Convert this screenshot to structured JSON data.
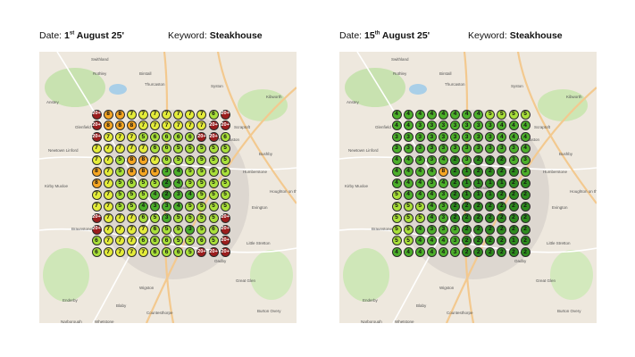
{
  "panels": [
    {
      "date_prefix": "Date: ",
      "date_day": "1",
      "date_suffix": "st",
      "date_rest": " August 25'",
      "keyword_prefix": "Keyword: ",
      "keyword": "Steakhouse",
      "grid": [
        [
          "20+",
          "8",
          "8",
          "7",
          "7",
          "7",
          "7",
          "7",
          "7",
          "7",
          "6",
          "20+"
        ],
        [
          "20+",
          "8",
          "8",
          "8",
          "7",
          "7",
          "7",
          "7",
          "7",
          "7",
          "20+",
          "20+"
        ],
        [
          "20+",
          "7",
          "7",
          "7",
          "5",
          "6",
          "6",
          "6",
          "6",
          "20+",
          "20+",
          "6"
        ],
        [
          "7",
          "7",
          "7",
          "7",
          "7",
          "6",
          "6",
          "5",
          "5",
          "5",
          "5",
          "5"
        ],
        [
          "7",
          "7",
          "5",
          "8",
          "8",
          "7",
          "6",
          "5",
          "5",
          "5",
          "5",
          "5"
        ],
        [
          "8",
          "7",
          "5",
          "8",
          "8",
          "8",
          "3",
          "4",
          "5",
          "5",
          "5",
          "5"
        ],
        [
          "8",
          "7",
          "5",
          "6",
          "5",
          "5",
          "2",
          "4",
          "5",
          "5",
          "5",
          "5"
        ],
        [
          "7",
          "7",
          "5",
          "5",
          "5",
          "4",
          "2",
          "3",
          "4",
          "5",
          "5",
          "5"
        ],
        [
          "7",
          "7",
          "5",
          "5",
          "4",
          "3",
          "3",
          "4",
          "5",
          "5",
          "5",
          "5"
        ],
        [
          "20+",
          "7",
          "7",
          "7",
          "6",
          "5",
          "3",
          "5",
          "5",
          "5",
          "5",
          "20+"
        ],
        [
          "20+",
          "7",
          "7",
          "7",
          "7",
          "6",
          "5",
          "5",
          "3",
          "5",
          "6",
          "20+"
        ],
        [
          "6",
          "7",
          "7",
          "7",
          "6",
          "6",
          "6",
          "5",
          "5",
          "6",
          "5",
          "20+"
        ],
        [
          "6",
          "7",
          "7",
          "7",
          "7",
          "6",
          "6",
          "6",
          "5",
          "20+",
          "20+",
          "20+"
        ]
      ]
    },
    {
      "date_prefix": "Date: ",
      "date_day": "15",
      "date_suffix": "th",
      "date_rest": " August 25'",
      "keyword_prefix": "Keyword: ",
      "keyword": "Steakhouse",
      "grid": [
        [
          "4",
          "4",
          "4",
          "4",
          "4",
          "4",
          "4",
          "4",
          "5",
          "5",
          "5",
          "5"
        ],
        [
          "4",
          "4",
          "3",
          "3",
          "3",
          "3",
          "3",
          "3",
          "3",
          "4",
          "4",
          "4"
        ],
        [
          "3",
          "3",
          "3",
          "3",
          "3",
          "3",
          "3",
          "3",
          "3",
          "4",
          "4",
          "4"
        ],
        [
          "3",
          "3",
          "3",
          "3",
          "3",
          "3",
          "3",
          "3",
          "3",
          "3",
          "3",
          "4"
        ],
        [
          "4",
          "4",
          "3",
          "3",
          "4",
          "2",
          "3",
          "2",
          "2",
          "2",
          "3",
          "3"
        ],
        [
          "4",
          "4",
          "4",
          "4",
          "8",
          "2",
          "1",
          "2",
          "2",
          "2",
          "2",
          "3"
        ],
        [
          "4",
          "4",
          "4",
          "3",
          "4",
          "2",
          "1",
          "1",
          "1",
          "1",
          "2",
          "2"
        ],
        [
          "5",
          "4",
          "4",
          "4",
          "3",
          "2",
          "1",
          "1",
          "1",
          "2",
          "2",
          "2"
        ],
        [
          "5",
          "5",
          "5",
          "4",
          "3",
          "2",
          "2",
          "2",
          "2",
          "2",
          "2",
          "2"
        ],
        [
          "5",
          "5",
          "5",
          "4",
          "3",
          "2",
          "2",
          "2",
          "2",
          "2",
          "2",
          "2"
        ],
        [
          "5",
          "5",
          "4",
          "3",
          "3",
          "3",
          "2",
          "2",
          "2",
          "2",
          "2",
          "2"
        ],
        [
          "5",
          "5",
          "4",
          "4",
          "4",
          "3",
          "2",
          "2",
          "2",
          "2",
          "1",
          "2"
        ],
        [
          "4",
          "4",
          "4",
          "4",
          "4",
          "3",
          "2",
          "2",
          "2",
          "2",
          "2",
          "2"
        ]
      ]
    }
  ],
  "map_labels": [
    "Swithland",
    "Birstall",
    "Syston",
    "Glenfield",
    "Leicester",
    "Oadby",
    "Wigston",
    "Blaby",
    "Enderby",
    "Braunstone",
    "Thurmaston",
    "Humberstone",
    "Evington",
    "Kirby Muxloe",
    "Narborough",
    "Whetstone",
    "Great Glen",
    "Little Stretton",
    "Houghton on the Hill",
    "Bushby",
    "Scraptoft",
    "Rothley",
    "Thurcaston",
    "Anstey",
    "Countesthorpe",
    "Newtown Linford",
    "Burton Overy",
    "Kibworth"
  ],
  "colors": {
    "red": "#9b1d1d",
    "orange": "#f5a623",
    "yellow": "#e4ec3a",
    "lime": "#a9e03a",
    "green": "#4caf2a",
    "dkgreen": "#2e8b1e"
  }
}
